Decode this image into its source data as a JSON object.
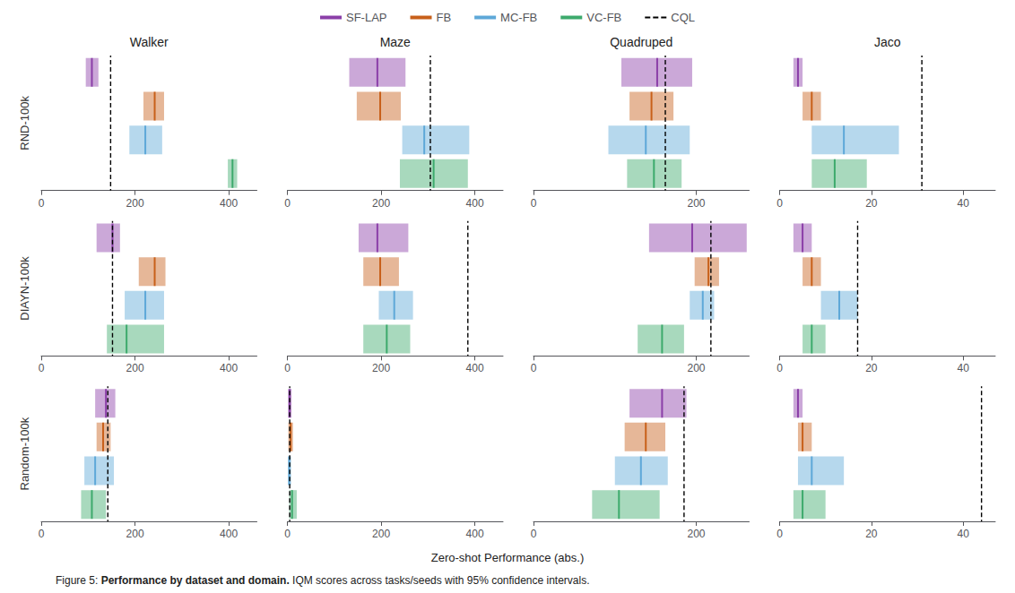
{
  "legend": "top",
  "xlabel": "Zero-shot Performance (abs.)",
  "annotations": [
    "Figure 5: ",
    "Performance by dataset and domain.",
    " IQM scores across tasks/seeds with 95% confidence intervals."
  ],
  "chart_data": [
    {
      "type": "bar",
      "orientation": "horizontal",
      "title": "Walker",
      "ylabel": "RND-100k",
      "xlim": [
        0,
        460
      ],
      "xticks": [
        0,
        200,
        400
      ],
      "grid": false,
      "tick_labels": "x",
      "series": [
        {
          "name": "SF-LAP",
          "color": "#8B3FA8",
          "values": [
            108
          ],
          "low": [
            95
          ],
          "high": [
            122
          ]
        },
        {
          "name": "FB",
          "color": "#C8601A",
          "values": [
            242
          ],
          "low": [
            218
          ],
          "high": [
            262
          ]
        },
        {
          "name": "MC-FB",
          "color": "#5EA8D8",
          "values": [
            222
          ],
          "low": [
            188
          ],
          "high": [
            258
          ]
        },
        {
          "name": "VC-FB",
          "color": "#3DAA6C",
          "values": [
            408
          ],
          "low": [
            398
          ],
          "high": [
            418
          ]
        },
        {
          "name": "CQL",
          "type": "vline",
          "color": "#000000",
          "line_style": "dashed",
          "values": [
            148
          ]
        }
      ]
    },
    {
      "type": "bar",
      "orientation": "horizontal",
      "title": "Maze",
      "xlim": [
        0,
        460
      ],
      "xticks": [
        0,
        200,
        400
      ],
      "grid": false,
      "tick_labels": "x",
      "series": [
        {
          "name": "SF-LAP",
          "color": "#8B3FA8",
          "values": [
            192
          ],
          "low": [
            132
          ],
          "high": [
            252
          ]
        },
        {
          "name": "FB",
          "color": "#C8601A",
          "values": [
            198
          ],
          "low": [
            148
          ],
          "high": [
            242
          ]
        },
        {
          "name": "MC-FB",
          "color": "#5EA8D8",
          "values": [
            292
          ],
          "low": [
            245
          ],
          "high": [
            388
          ]
        },
        {
          "name": "VC-FB",
          "color": "#3DAA6C",
          "values": [
            312
          ],
          "low": [
            240
          ],
          "high": [
            385
          ]
        },
        {
          "name": "CQL",
          "type": "vline",
          "color": "#000000",
          "line_style": "dashed",
          "values": [
            305
          ]
        }
      ]
    },
    {
      "type": "bar",
      "orientation": "horizontal",
      "title": "Quadruped",
      "xlim": [
        0,
        265
      ],
      "xticks": [
        0,
        200
      ],
      "grid": false,
      "tick_labels": "x",
      "series": [
        {
          "name": "SF-LAP",
          "color": "#8B3FA8",
          "values": [
            152
          ],
          "low": [
            108
          ],
          "high": [
            195
          ]
        },
        {
          "name": "FB",
          "color": "#C8601A",
          "values": [
            145
          ],
          "low": [
            118
          ],
          "high": [
            172
          ]
        },
        {
          "name": "MC-FB",
          "color": "#5EA8D8",
          "values": [
            138
          ],
          "low": [
            92
          ],
          "high": [
            192
          ]
        },
        {
          "name": "VC-FB",
          "color": "#3DAA6C",
          "values": [
            148
          ],
          "low": [
            115
          ],
          "high": [
            182
          ]
        },
        {
          "name": "CQL",
          "type": "vline",
          "color": "#000000",
          "line_style": "dashed",
          "values": [
            162
          ]
        }
      ]
    },
    {
      "type": "bar",
      "orientation": "horizontal",
      "title": "Jaco",
      "xlim": [
        0,
        47
      ],
      "xticks": [
        0,
        20,
        40
      ],
      "grid": false,
      "tick_labels": "x",
      "series": [
        {
          "name": "SF-LAP",
          "color": "#8B3FA8",
          "values": [
            4
          ],
          "low": [
            3
          ],
          "high": [
            5
          ]
        },
        {
          "name": "FB",
          "color": "#C8601A",
          "values": [
            7
          ],
          "low": [
            5
          ],
          "high": [
            9
          ]
        },
        {
          "name": "MC-FB",
          "color": "#5EA8D8",
          "values": [
            14
          ],
          "low": [
            7
          ],
          "high": [
            26
          ]
        },
        {
          "name": "VC-FB",
          "color": "#3DAA6C",
          "values": [
            12
          ],
          "low": [
            7
          ],
          "high": [
            19
          ]
        },
        {
          "name": "CQL",
          "type": "vline",
          "color": "#000000",
          "line_style": "dashed",
          "values": [
            31
          ]
        }
      ]
    },
    {
      "type": "bar",
      "orientation": "horizontal",
      "ylabel": "DIAYN-100k",
      "xlim": [
        0,
        460
      ],
      "xticks": [
        0,
        200,
        400
      ],
      "grid": false,
      "tick_labels": "x",
      "series": [
        {
          "name": "SF-LAP",
          "color": "#8B3FA8",
          "values": [
            152
          ],
          "low": [
            118
          ],
          "high": [
            168
          ]
        },
        {
          "name": "FB",
          "color": "#C8601A",
          "values": [
            242
          ],
          "low": [
            208
          ],
          "high": [
            265
          ]
        },
        {
          "name": "MC-FB",
          "color": "#5EA8D8",
          "values": [
            222
          ],
          "low": [
            178
          ],
          "high": [
            262
          ]
        },
        {
          "name": "VC-FB",
          "color": "#3DAA6C",
          "values": [
            182
          ],
          "low": [
            140
          ],
          "high": [
            262
          ]
        },
        {
          "name": "CQL",
          "type": "vline",
          "color": "#000000",
          "line_style": "dashed",
          "values": [
            152
          ]
        }
      ]
    },
    {
      "type": "bar",
      "orientation": "horizontal",
      "xlim": [
        0,
        460
      ],
      "xticks": [
        0,
        200,
        400
      ],
      "grid": false,
      "tick_labels": "x",
      "series": [
        {
          "name": "SF-LAP",
          "color": "#8B3FA8",
          "values": [
            192
          ],
          "low": [
            152
          ],
          "high": [
            258
          ]
        },
        {
          "name": "FB",
          "color": "#C8601A",
          "values": [
            198
          ],
          "low": [
            162
          ],
          "high": [
            238
          ]
        },
        {
          "name": "MC-FB",
          "color": "#5EA8D8",
          "values": [
            228
          ],
          "low": [
            195
          ],
          "high": [
            268
          ]
        },
        {
          "name": "VC-FB",
          "color": "#3DAA6C",
          "values": [
            212
          ],
          "low": [
            162
          ],
          "high": [
            262
          ]
        },
        {
          "name": "CQL",
          "type": "vline",
          "color": "#000000",
          "line_style": "dashed",
          "values": [
            385
          ]
        }
      ]
    },
    {
      "type": "bar",
      "orientation": "horizontal",
      "xlim": [
        0,
        265
      ],
      "xticks": [
        0,
        200
      ],
      "grid": false,
      "tick_labels": "x",
      "series": [
        {
          "name": "SF-LAP",
          "color": "#8B3FA8",
          "values": [
            195
          ],
          "low": [
            142
          ],
          "high": [
            262
          ]
        },
        {
          "name": "FB",
          "color": "#C8601A",
          "values": [
            215
          ],
          "low": [
            198
          ],
          "high": [
            228
          ]
        },
        {
          "name": "MC-FB",
          "color": "#5EA8D8",
          "values": [
            208
          ],
          "low": [
            192
          ],
          "high": [
            222
          ]
        },
        {
          "name": "VC-FB",
          "color": "#3DAA6C",
          "values": [
            158
          ],
          "low": [
            128
          ],
          "high": [
            185
          ]
        },
        {
          "name": "CQL",
          "type": "vline",
          "color": "#000000",
          "line_style": "dashed",
          "values": [
            218
          ]
        }
      ]
    },
    {
      "type": "bar",
      "orientation": "horizontal",
      "xlim": [
        0,
        47
      ],
      "xticks": [
        0,
        20,
        40
      ],
      "grid": false,
      "tick_labels": "x",
      "series": [
        {
          "name": "SF-LAP",
          "color": "#8B3FA8",
          "values": [
            5
          ],
          "low": [
            3
          ],
          "high": [
            7
          ]
        },
        {
          "name": "FB",
          "color": "#C8601A",
          "values": [
            7
          ],
          "low": [
            5
          ],
          "high": [
            9
          ]
        },
        {
          "name": "MC-FB",
          "color": "#5EA8D8",
          "values": [
            13
          ],
          "low": [
            9
          ],
          "high": [
            17
          ]
        },
        {
          "name": "VC-FB",
          "color": "#3DAA6C",
          "values": [
            7
          ],
          "low": [
            5
          ],
          "high": [
            10
          ]
        },
        {
          "name": "CQL",
          "type": "vline",
          "color": "#000000",
          "line_style": "dashed",
          "values": [
            17
          ]
        }
      ]
    },
    {
      "type": "bar",
      "orientation": "horizontal",
      "ylabel": "Random-100k",
      "xlim": [
        0,
        460
      ],
      "xticks": [
        0,
        200,
        400
      ],
      "grid": false,
      "tick_labels": "x",
      "series": [
        {
          "name": "SF-LAP",
          "color": "#8B3FA8",
          "values": [
            138
          ],
          "low": [
            115
          ],
          "high": [
            158
          ]
        },
        {
          "name": "FB",
          "color": "#C8601A",
          "values": [
            132
          ],
          "low": [
            118
          ],
          "high": [
            148
          ]
        },
        {
          "name": "MC-FB",
          "color": "#5EA8D8",
          "values": [
            115
          ],
          "low": [
            92
          ],
          "high": [
            155
          ]
        },
        {
          "name": "VC-FB",
          "color": "#3DAA6C",
          "values": [
            108
          ],
          "low": [
            85
          ],
          "high": [
            138
          ]
        },
        {
          "name": "CQL",
          "type": "vline",
          "color": "#000000",
          "line_style": "dashed",
          "values": [
            142
          ]
        }
      ]
    },
    {
      "type": "bar",
      "orientation": "horizontal",
      "xlim": [
        0,
        460
      ],
      "xticks": [
        0,
        200,
        400
      ],
      "grid": false,
      "tick_labels": "x",
      "series": [
        {
          "name": "SF-LAP",
          "color": "#8B3FA8",
          "values": [
            5
          ],
          "low": [
            1
          ],
          "high": [
            9
          ]
        },
        {
          "name": "FB",
          "color": "#C8601A",
          "values": [
            7
          ],
          "low": [
            2
          ],
          "high": [
            12
          ]
        },
        {
          "name": "MC-FB",
          "color": "#5EA8D8",
          "values": [
            4
          ],
          "low": [
            1
          ],
          "high": [
            8
          ]
        },
        {
          "name": "VC-FB",
          "color": "#3DAA6C",
          "values": [
            10
          ],
          "low": [
            4
          ],
          "high": [
            20
          ]
        },
        {
          "name": "CQL",
          "type": "vline",
          "color": "#000000",
          "line_style": "dashed",
          "values": [
            5
          ]
        }
      ]
    },
    {
      "type": "bar",
      "orientation": "horizontal",
      "xlim": [
        0,
        265
      ],
      "xticks": [
        0,
        200
      ],
      "grid": false,
      "tick_labels": "x",
      "series": [
        {
          "name": "SF-LAP",
          "color": "#8B3FA8",
          "values": [
            158
          ],
          "low": [
            118
          ],
          "high": [
            188
          ]
        },
        {
          "name": "FB",
          "color": "#C8601A",
          "values": [
            138
          ],
          "low": [
            112
          ],
          "high": [
            162
          ]
        },
        {
          "name": "MC-FB",
          "color": "#5EA8D8",
          "values": [
            132
          ],
          "low": [
            100
          ],
          "high": [
            165
          ]
        },
        {
          "name": "VC-FB",
          "color": "#3DAA6C",
          "values": [
            105
          ],
          "low": [
            72
          ],
          "high": [
            155
          ]
        },
        {
          "name": "CQL",
          "type": "vline",
          "color": "#000000",
          "line_style": "dashed",
          "values": [
            185
          ]
        }
      ]
    },
    {
      "type": "bar",
      "orientation": "horizontal",
      "xlim": [
        0,
        47
      ],
      "xticks": [
        0,
        20,
        40
      ],
      "grid": false,
      "tick_labels": "x",
      "series": [
        {
          "name": "SF-LAP",
          "color": "#8B3FA8",
          "values": [
            4
          ],
          "low": [
            3
          ],
          "high": [
            5
          ]
        },
        {
          "name": "FB",
          "color": "#C8601A",
          "values": [
            5
          ],
          "low": [
            4
          ],
          "high": [
            7
          ]
        },
        {
          "name": "MC-FB",
          "color": "#5EA8D8",
          "values": [
            7
          ],
          "low": [
            4
          ],
          "high": [
            14
          ]
        },
        {
          "name": "VC-FB",
          "color": "#3DAA6C",
          "values": [
            5
          ],
          "low": [
            3
          ],
          "high": [
            10
          ]
        },
        {
          "name": "CQL",
          "type": "vline",
          "color": "#000000",
          "line_style": "dashed",
          "values": [
            44
          ]
        }
      ]
    }
  ]
}
